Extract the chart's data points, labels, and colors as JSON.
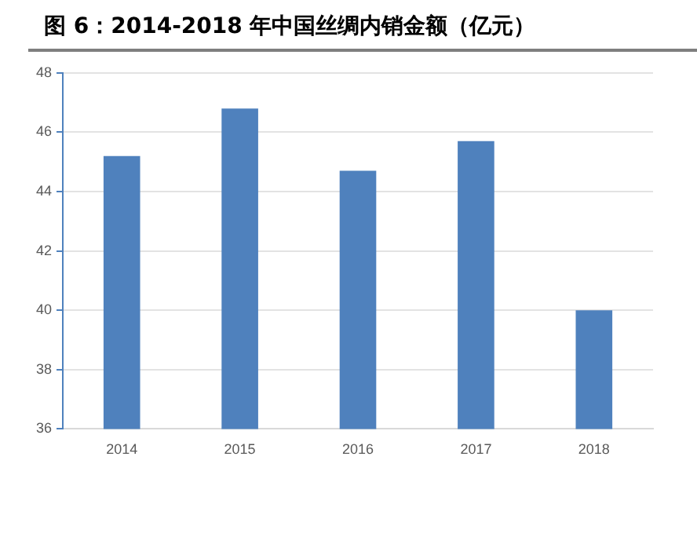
{
  "chart_data": {
    "type": "bar",
    "title": "图 6：2014-2018 年中国丝绸内销金额（亿元）",
    "categories": [
      "2014",
      "2015",
      "2016",
      "2017",
      "2018"
    ],
    "values": [
      45.2,
      46.8,
      44.7,
      45.7,
      40.0
    ],
    "color": "#4f81bd",
    "ylim": [
      36,
      48
    ],
    "yticks": [
      36,
      38,
      40,
      42,
      44,
      46,
      48
    ],
    "grid": "y"
  }
}
